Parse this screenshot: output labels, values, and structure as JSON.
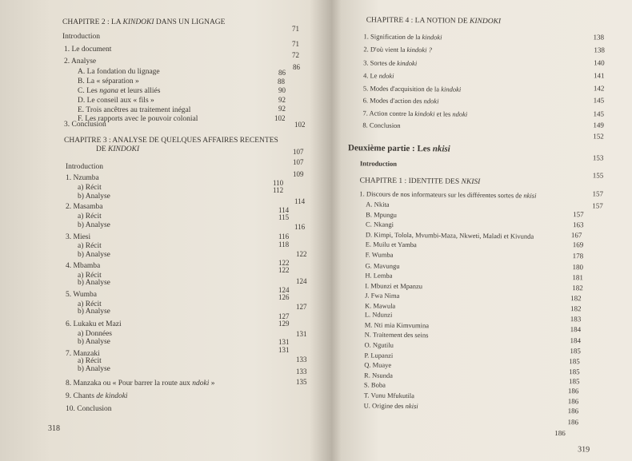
{
  "left": {
    "folio": "318",
    "lines": [
      {
        "cls": "head",
        "parts": [
          {
            "t": "CHAPITRE 2 : LA "
          },
          {
            "t": "KINDOKI",
            "i": true
          },
          {
            "t": " DANS UN LIGNAGE"
          }
        ]
      },
      {
        "parts": [
          {
            "t": "Introduction"
          }
        ]
      },
      {
        "parts": [
          {
            "t": "1.   Le document"
          }
        ]
      },
      {
        "parts": [
          {
            "t": "2.   Analyse"
          }
        ]
      },
      {
        "parts": [
          {
            "t": "A.   La fondation du lignage"
          }
        ]
      },
      {
        "parts": [
          {
            "t": "B.   La « séparation »"
          }
        ]
      },
      {
        "parts": [
          {
            "t": "C.   Les "
          },
          {
            "t": "ngana",
            "i": true
          },
          {
            "t": " et leurs alliés"
          }
        ]
      },
      {
        "parts": [
          {
            "t": "D.   Le conseil aux « fils »"
          }
        ]
      },
      {
        "parts": [
          {
            "t": "E.   Trois ancêtres au traitement inégal"
          }
        ]
      },
      {
        "parts": [
          {
            "t": "F.   Les rapports avec le pouvoir colonial"
          }
        ]
      },
      {
        "parts": [
          {
            "t": "3.   Conclusion"
          }
        ]
      },
      {
        "cls": "head",
        "parts": [
          {
            "t": "CHAPITRE 3 : ANALYSE DE QUELQUES AFFAIRES RECENTES"
          }
        ]
      },
      {
        "cls": "head",
        "parts": [
          {
            "t": "DE "
          },
          {
            "t": "KINDOKI",
            "i": true
          }
        ]
      },
      {
        "parts": [
          {
            "t": "Introduction"
          }
        ]
      },
      {
        "parts": [
          {
            "t": "1.   Nzumba"
          }
        ]
      },
      {
        "parts": [
          {
            "t": "a)   Récit"
          }
        ]
      },
      {
        "parts": [
          {
            "t": "b)   Analyse"
          }
        ]
      },
      {
        "parts": [
          {
            "t": "2.   Masamba"
          }
        ]
      },
      {
        "parts": [
          {
            "t": "a)   Récit"
          }
        ]
      },
      {
        "parts": [
          {
            "t": "b)   Analyse"
          }
        ]
      },
      {
        "parts": [
          {
            "t": "3.   Miesi"
          }
        ]
      },
      {
        "parts": [
          {
            "t": "a)   Récit"
          }
        ]
      },
      {
        "parts": [
          {
            "t": "b)   Analyse"
          }
        ]
      },
      {
        "parts": [
          {
            "t": "4.   Mbamba"
          }
        ]
      },
      {
        "parts": [
          {
            "t": "a)   Récit"
          }
        ]
      },
      {
        "parts": [
          {
            "t": "b)   Analyse"
          }
        ]
      },
      {
        "parts": [
          {
            "t": "5.   Wumba"
          }
        ]
      },
      {
        "parts": [
          {
            "t": "a)   Récit"
          }
        ]
      },
      {
        "parts": [
          {
            "t": "b)   Analyse"
          }
        ]
      },
      {
        "parts": [
          {
            "t": "6.   Lukaku et Mazi"
          }
        ]
      },
      {
        "parts": [
          {
            "t": "a)   Données"
          }
        ]
      },
      {
        "parts": [
          {
            "t": "b)   Analyse"
          }
        ]
      },
      {
        "parts": [
          {
            "t": "7.   Manzaki"
          }
        ]
      },
      {
        "parts": [
          {
            "t": "a)   Récit"
          }
        ]
      },
      {
        "parts": [
          {
            "t": "b)   Analyse"
          }
        ]
      },
      {
        "parts": [
          {
            "t": "8.   Manzaka ou « Pour barrer la route aux "
          },
          {
            "t": "ndoki",
            "i": true
          },
          {
            "t": " »"
          }
        ]
      },
      {
        "parts": [
          {
            "t": "9.   Chants "
          },
          {
            "t": "de kindoki",
            "i": true
          }
        ]
      },
      {
        "parts": [
          {
            "t": "10.  Conclusion"
          }
        ]
      }
    ],
    "numbers": [
      "71",
      "71",
      "72",
      "86",
      "86",
      "88",
      "90",
      "92",
      "92",
      "102",
      "102",
      "107",
      "107",
      "109",
      "110",
      "112",
      "114",
      "114",
      "115",
      "116",
      "116",
      "118",
      "122",
      "122",
      "122",
      "124",
      "124",
      "126",
      "127",
      "127",
      "129",
      "131",
      "131",
      "131",
      "133",
      "133",
      "135"
    ]
  },
  "right": {
    "folio": "319",
    "lines": [
      {
        "cls": "head",
        "parts": [
          {
            "t": "CHAPITRE 4 : LA NOTION DE "
          },
          {
            "t": "KINDOKI",
            "i": true
          }
        ]
      },
      {
        "cls": "small",
        "parts": [
          {
            "t": "1.   Signification de la "
          },
          {
            "t": "kindoki",
            "i": true
          }
        ]
      },
      {
        "cls": "small",
        "parts": [
          {
            "t": "2.   D'où vient la "
          },
          {
            "t": "kindoki ?",
            "i": true
          }
        ]
      },
      {
        "cls": "small",
        "parts": [
          {
            "t": "3.   Sortes de "
          },
          {
            "t": "kindoki",
            "i": true
          }
        ]
      },
      {
        "cls": "small",
        "parts": [
          {
            "t": "4.   Le "
          },
          {
            "t": "ndoki",
            "i": true
          }
        ]
      },
      {
        "cls": "small",
        "parts": [
          {
            "t": "5.   Modes d'acquisition de la "
          },
          {
            "t": "kindoki",
            "i": true
          }
        ]
      },
      {
        "cls": "small",
        "parts": [
          {
            "t": "6.   Modes d'action des "
          },
          {
            "t": "ndoki",
            "i": true
          }
        ]
      },
      {
        "cls": "small",
        "parts": [
          {
            "t": "7.   Action contre la "
          },
          {
            "t": "kindoki",
            "i": true
          },
          {
            "t": " et les "
          },
          {
            "t": "ndoki",
            "i": true
          }
        ]
      },
      {
        "cls": "small",
        "parts": [
          {
            "t": "8.   Conclusion"
          }
        ]
      },
      {
        "cls": "part",
        "parts": [
          {
            "t": "Deuxième partie : Les "
          },
          {
            "t": "nkisi",
            "i": true
          }
        ]
      },
      {
        "cls": "intro-b",
        "parts": [
          {
            "t": "Introduction"
          }
        ]
      },
      {
        "cls": "head",
        "parts": [
          {
            "t": "CHAPITRE 1 : IDENTITE DES "
          },
          {
            "t": "NKISI",
            "i": true
          }
        ]
      },
      {
        "cls": "small",
        "parts": [
          {
            "t": "1.  Discours de nos informateurs sur les différentes sortes de "
          },
          {
            "t": "nkisi",
            "i": true
          }
        ]
      },
      {
        "cls": "small",
        "parts": [
          {
            "t": "A.  Nkita"
          }
        ]
      },
      {
        "cls": "small",
        "parts": [
          {
            "t": "B.  Mpungu"
          }
        ]
      },
      {
        "cls": "small",
        "parts": [
          {
            "t": "C.  Nkangi"
          }
        ]
      },
      {
        "cls": "small",
        "parts": [
          {
            "t": "D.  Kimpi, Tolola, Mvumbi-Maza, Nkweti, Maladi et Kivunda"
          }
        ]
      },
      {
        "cls": "small",
        "parts": [
          {
            "t": "E.  Muilu et Yamba"
          }
        ]
      },
      {
        "cls": "small",
        "parts": [
          {
            "t": "F.  Wumba"
          }
        ]
      },
      {
        "cls": "small",
        "parts": [
          {
            "t": "G.  Mavungu"
          }
        ]
      },
      {
        "cls": "small",
        "parts": [
          {
            "t": "H.  Lemba"
          }
        ]
      },
      {
        "cls": "small",
        "parts": [
          {
            "t": "I.   Mbunzi et Mpanzu"
          }
        ]
      },
      {
        "cls": "small",
        "parts": [
          {
            "t": "J.   Fwa Nima"
          }
        ]
      },
      {
        "cls": "small",
        "parts": [
          {
            "t": "K.  Mawula"
          }
        ]
      },
      {
        "cls": "small",
        "parts": [
          {
            "t": "L.  Ndunzi"
          }
        ]
      },
      {
        "cls": "small",
        "parts": [
          {
            "t": "M.  Nti mia Kimvumina"
          }
        ]
      },
      {
        "cls": "small",
        "parts": [
          {
            "t": "N.  Traitement des seins"
          }
        ]
      },
      {
        "cls": "small",
        "parts": [
          {
            "t": "O.  Ngutilu"
          }
        ]
      },
      {
        "cls": "small",
        "parts": [
          {
            "t": "P.  Lupanzi"
          }
        ]
      },
      {
        "cls": "small",
        "parts": [
          {
            "t": "Q.  Muaye"
          }
        ]
      },
      {
        "cls": "small",
        "parts": [
          {
            "t": "R.  Nsunda"
          }
        ]
      },
      {
        "cls": "small",
        "parts": [
          {
            "t": "S.  Boba"
          }
        ]
      },
      {
        "cls": "small",
        "parts": [
          {
            "t": "T.  Vunu Mfukutila"
          }
        ]
      },
      {
        "cls": "small",
        "parts": [
          {
            "t": "U.  Origine des "
          },
          {
            "t": "nkisi",
            "i": true
          }
        ]
      }
    ],
    "numbers": [
      "138",
      "138",
      "140",
      "141",
      "142",
      "145",
      "145",
      "149",
      "152",
      "153",
      "155",
      "157",
      "157",
      "157",
      "163",
      "167",
      "169",
      "178",
      "180",
      "181",
      "182",
      "182",
      "182",
      "183",
      "184",
      "184",
      "185",
      "185",
      "185",
      "185",
      "186",
      "186",
      "186",
      "186",
      "186"
    ]
  }
}
